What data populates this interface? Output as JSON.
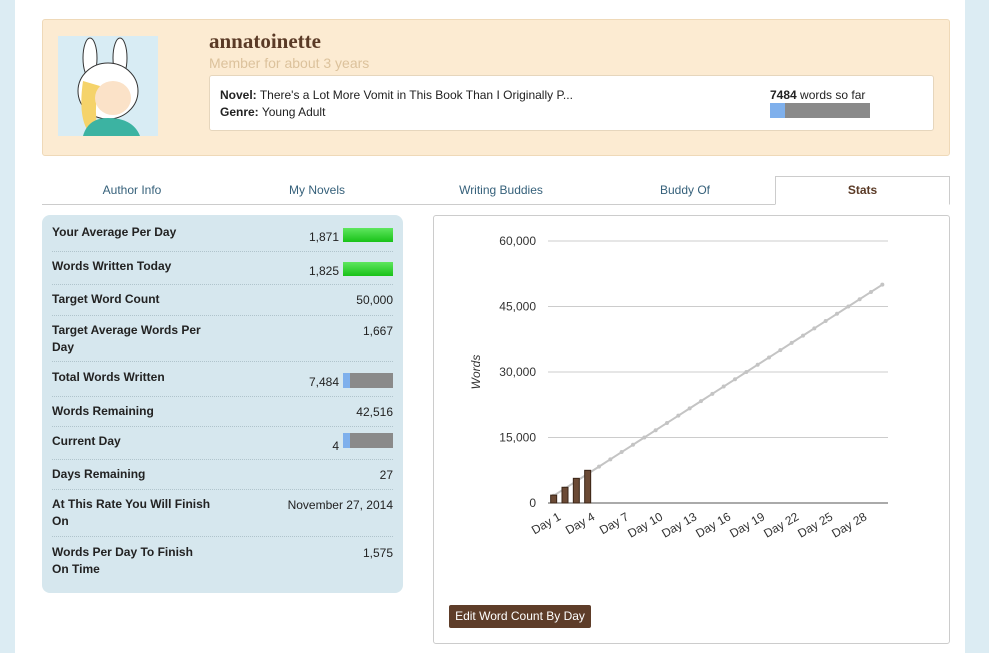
{
  "profile": {
    "username": "annatoinette",
    "member_since": "Member for about 3 years",
    "novel_label": "Novel:",
    "novel_title": "There's a Lot More Vomit in This Book Than I Originally P...",
    "genre_label": "Genre:",
    "genre": "Young Adult",
    "word_count": "7484",
    "word_count_suffix": "words so far"
  },
  "tabs": [
    "Author Info",
    "My Novels",
    "Writing Buddies",
    "Buddy Of",
    "Stats"
  ],
  "stats": [
    {
      "label": "Your Average Per Day",
      "value": "1,871"
    },
    {
      "label": "Words Written Today",
      "value": "1,825"
    },
    {
      "label": "Target Word Count",
      "value": "50,000"
    },
    {
      "label": "Target Average Words Per Day",
      "value": "1,667"
    },
    {
      "label": "Total Words Written",
      "value": "7,484"
    },
    {
      "label": "Words Remaining",
      "value": "42,516"
    },
    {
      "label": "Current Day",
      "value": "4"
    },
    {
      "label": "Days Remaining",
      "value": "27"
    },
    {
      "label": "At This Rate You Will Finish On",
      "value": "November 27, 2014"
    },
    {
      "label": "Words Per Day To Finish On Time",
      "value": "1,575"
    }
  ],
  "chart_data": {
    "type": "combo",
    "ylabel": "Words",
    "categories": [
      "Day 1",
      null,
      null,
      "Day 4",
      null,
      null,
      "Day 7",
      null,
      null,
      "Day 10",
      null,
      null,
      "Day 13",
      null,
      null,
      "Day 16",
      null,
      null,
      "Day 19",
      null,
      null,
      "Day 22",
      null,
      null,
      "Day 25",
      null,
      null,
      "Day 28",
      null,
      null
    ],
    "series": [
      {
        "type": "bar",
        "color": "#6b4a35",
        "values": [
          1800,
          3600,
          5650,
          7484,
          null,
          null,
          null,
          null,
          null,
          null,
          null,
          null,
          null,
          null,
          null,
          null,
          null,
          null,
          null,
          null,
          null,
          null,
          null,
          null,
          null,
          null,
          null,
          null,
          null,
          null
        ]
      },
      {
        "type": "line",
        "color": "#c4c4c4",
        "values": [
          1667,
          3333,
          5000,
          6667,
          8333,
          10000,
          11667,
          13333,
          15000,
          16667,
          18333,
          20000,
          21667,
          23333,
          25000,
          26667,
          28333,
          30000,
          31667,
          33333,
          35000,
          36667,
          38333,
          40000,
          41667,
          43333,
          45000,
          46667,
          48333,
          50000
        ]
      }
    ],
    "ylim": [
      0,
      60000
    ],
    "yticks": [
      0,
      {
        "value": 15000,
        "label": "15,000"
      },
      {
        "value": 30000,
        "label": "30,000"
      },
      {
        "value": 45000,
        "label": "45,000"
      },
      {
        "value": 60000,
        "label": "60,000"
      }
    ],
    "grid": true
  },
  "button": "Edit Word Count By Day"
}
